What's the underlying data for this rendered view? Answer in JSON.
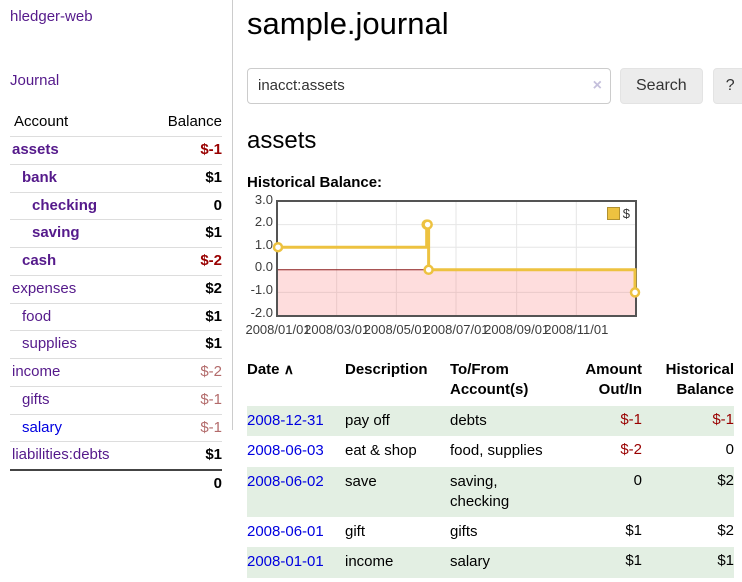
{
  "app": {
    "title": "hledger-web"
  },
  "colors": {
    "link_purple": "#551a8b",
    "link_blue": "#0000e0",
    "neg_strong": "#990000",
    "neg_muted": "#b36b6b",
    "row_green": "#e3efe3",
    "series_gold": "#edc240",
    "chart_border": "#545454",
    "zero_line": "#8b1a1a",
    "negative_fill": "#ffdcdc"
  },
  "sidebar": {
    "journal_link": "Journal",
    "accounts": {
      "header_account": "Account",
      "header_balance": "Balance",
      "rows": [
        {
          "name": "assets",
          "balance": "$-1",
          "depth": 0,
          "bold": true
        },
        {
          "name": "bank",
          "balance": "$1",
          "depth": 1,
          "bold": true
        },
        {
          "name": "checking",
          "balance": "0",
          "depth": 2,
          "bold": true
        },
        {
          "name": "saving",
          "balance": "$1",
          "depth": 2,
          "bold": true
        },
        {
          "name": "cash",
          "balance": "$-2",
          "depth": 1,
          "bold": true
        },
        {
          "name": "expenses",
          "balance": "$2",
          "depth": 0,
          "bold": false
        },
        {
          "name": "food",
          "balance": "$1",
          "depth": 1,
          "bold": false
        },
        {
          "name": "supplies",
          "balance": "$1",
          "depth": 1,
          "bold": false
        },
        {
          "name": "income",
          "balance": "$-2",
          "depth": 0,
          "bold": false
        },
        {
          "name": "gifts",
          "balance": "$-1",
          "depth": 1,
          "bold": false
        },
        {
          "name": "salary",
          "balance": "$-1",
          "depth": 1,
          "bold": false,
          "link_style": "blue"
        },
        {
          "name": "liabilities:debts",
          "balance": "$1",
          "depth": 0,
          "bold": false
        }
      ],
      "total": "0"
    }
  },
  "main": {
    "title": "sample.journal",
    "search": {
      "value": "inacct:assets",
      "clear_label": "×",
      "button": "Search",
      "help": "?"
    },
    "account_heading": "assets",
    "section_label": "Historical Balance:"
  },
  "chart_data": {
    "type": "line",
    "style": "step",
    "title": "Historical Balance",
    "ylim": [
      -2,
      3
    ],
    "x_range": [
      "2008-01-01",
      "2008-12-31"
    ],
    "grid": true,
    "negative_region_shaded": true,
    "legend": {
      "label": "$",
      "position": "top-right"
    },
    "series": [
      {
        "name": "$",
        "points": [
          {
            "date": "2008-01-01",
            "value": 1
          },
          {
            "date": "2008-06-01",
            "value": 2
          },
          {
            "date": "2008-06-02",
            "value": 2
          },
          {
            "date": "2008-06-03",
            "value": 0
          },
          {
            "date": "2008-12-31",
            "value": -1
          }
        ]
      }
    ],
    "y_ticks": [
      {
        "label": "3.0",
        "value": 3
      },
      {
        "label": "2.0",
        "value": 2
      },
      {
        "label": "1.0",
        "value": 1
      },
      {
        "label": "0.0",
        "value": 0
      },
      {
        "label": "-1.0",
        "value": -1
      },
      {
        "label": "-2.0",
        "value": -2
      }
    ],
    "x_ticks": [
      {
        "label": "2008/01/01",
        "date": "2008-01-01"
      },
      {
        "label": "2008/03/01",
        "date": "2008-03-01"
      },
      {
        "label": "2008/05/01",
        "date": "2008-05-01"
      },
      {
        "label": "2008/07/01",
        "date": "2008-07-01"
      },
      {
        "label": "2008/09/01",
        "date": "2008-09-01"
      },
      {
        "label": "2008/11/01",
        "date": "2008-11-01"
      }
    ]
  },
  "register": {
    "headers": {
      "date": "Date",
      "sort_icon": "∧",
      "description": "Description",
      "to_from_line1": "To/From",
      "to_from_line2": "Account(s)",
      "amount_line1": "Amount",
      "amount_line2": "Out/In",
      "balance_line1": "Historical",
      "balance_line2": "Balance"
    },
    "rows": [
      {
        "date": "2008-12-31",
        "description": "pay off",
        "to_from": "debts",
        "amount": "$-1",
        "balance": "$-1"
      },
      {
        "date": "2008-06-03",
        "description": "eat & shop",
        "to_from": "food, supplies",
        "amount": "$-2",
        "balance": "0"
      },
      {
        "date": "2008-06-02",
        "description": "save",
        "to_from": "saving, checking",
        "amount": "0",
        "balance": "$2"
      },
      {
        "date": "2008-06-01",
        "description": "gift",
        "to_from": "gifts",
        "amount": "$1",
        "balance": "$2"
      },
      {
        "date": "2008-01-01",
        "description": "income",
        "to_from": "salary",
        "amount": "$1",
        "balance": "$1"
      }
    ]
  }
}
